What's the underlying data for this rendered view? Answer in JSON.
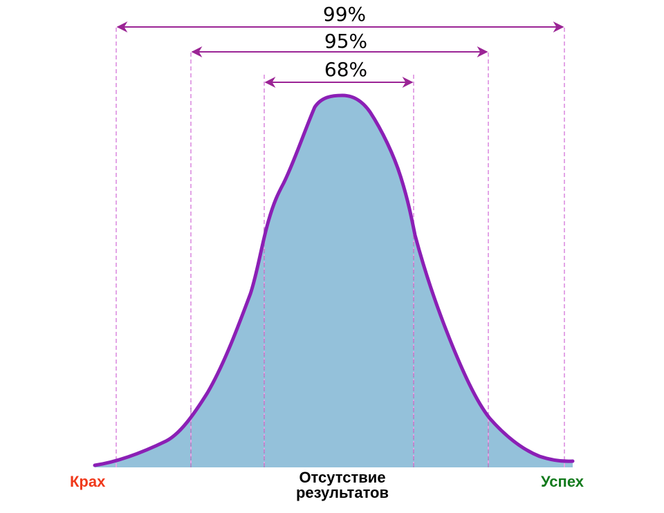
{
  "intervals": [
    {
      "label": "99%"
    },
    {
      "label": "95%"
    },
    {
      "label": "68%"
    }
  ],
  "axis_labels": {
    "left": "Крах",
    "center_line1": "Отсутствие",
    "center_line2": "результатов",
    "right": "Успех"
  },
  "colors": {
    "curve": "#8b1fb5",
    "fill": "#94c1da",
    "arrow": "#9b2495",
    "guide": "#e3a4e6",
    "left_label": "#f0391b",
    "right_label": "#127a1c",
    "center_label": "#000000"
  }
}
